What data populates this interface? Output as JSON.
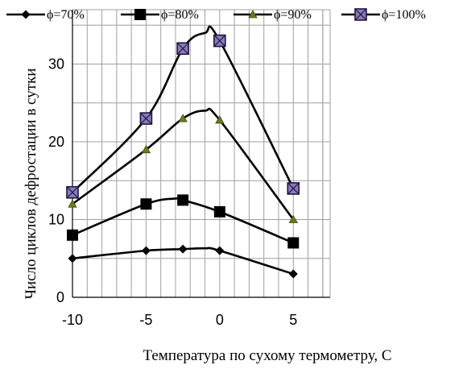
{
  "chart_data": {
    "type": "line",
    "title": "",
    "xlabel": "Температура по сухому термометру, С",
    "ylabel": "Число циклов дефростации в сутки",
    "xlim": [
      -10,
      7.5
    ],
    "ylim": [
      0,
      37
    ],
    "x_ticks": [
      -10,
      -5,
      0,
      5
    ],
    "x_tick_labels": [
      "-10",
      "-5",
      "0",
      "5"
    ],
    "y_ticks": [
      0,
      10,
      20,
      30
    ],
    "y_tick_labels": [
      "0",
      "10",
      "20",
      "30"
    ],
    "grid": true,
    "legend_position": "top",
    "x": [
      -10,
      -5,
      -2.5,
      0,
      5
    ],
    "series": [
      {
        "name": "ϕ=70%",
        "marker": "diamond",
        "values": [
          5,
          6,
          6.2,
          6,
          3
        ],
        "peak": [
          -1,
          6.3
        ]
      },
      {
        "name": "ϕ=80%",
        "marker": "square",
        "values": [
          8,
          12,
          12.5,
          11,
          7
        ],
        "peak": [
          -3,
          12.7
        ]
      },
      {
        "name": "ϕ=90%",
        "marker": "triangle",
        "values": [
          12,
          19,
          23,
          22.8,
          10
        ],
        "peak": [
          -1,
          24
        ]
      },
      {
        "name": "ϕ=100%",
        "marker": "square-x",
        "values": [
          13.5,
          23,
          32,
          33,
          14
        ],
        "peak": [
          -1,
          34
        ]
      }
    ],
    "colors": {
      "line": "#000000",
      "grid": "#a0a0a0",
      "triangle_fill": "#6b7a1c",
      "square_x_fill": "#8b7ab8"
    }
  }
}
